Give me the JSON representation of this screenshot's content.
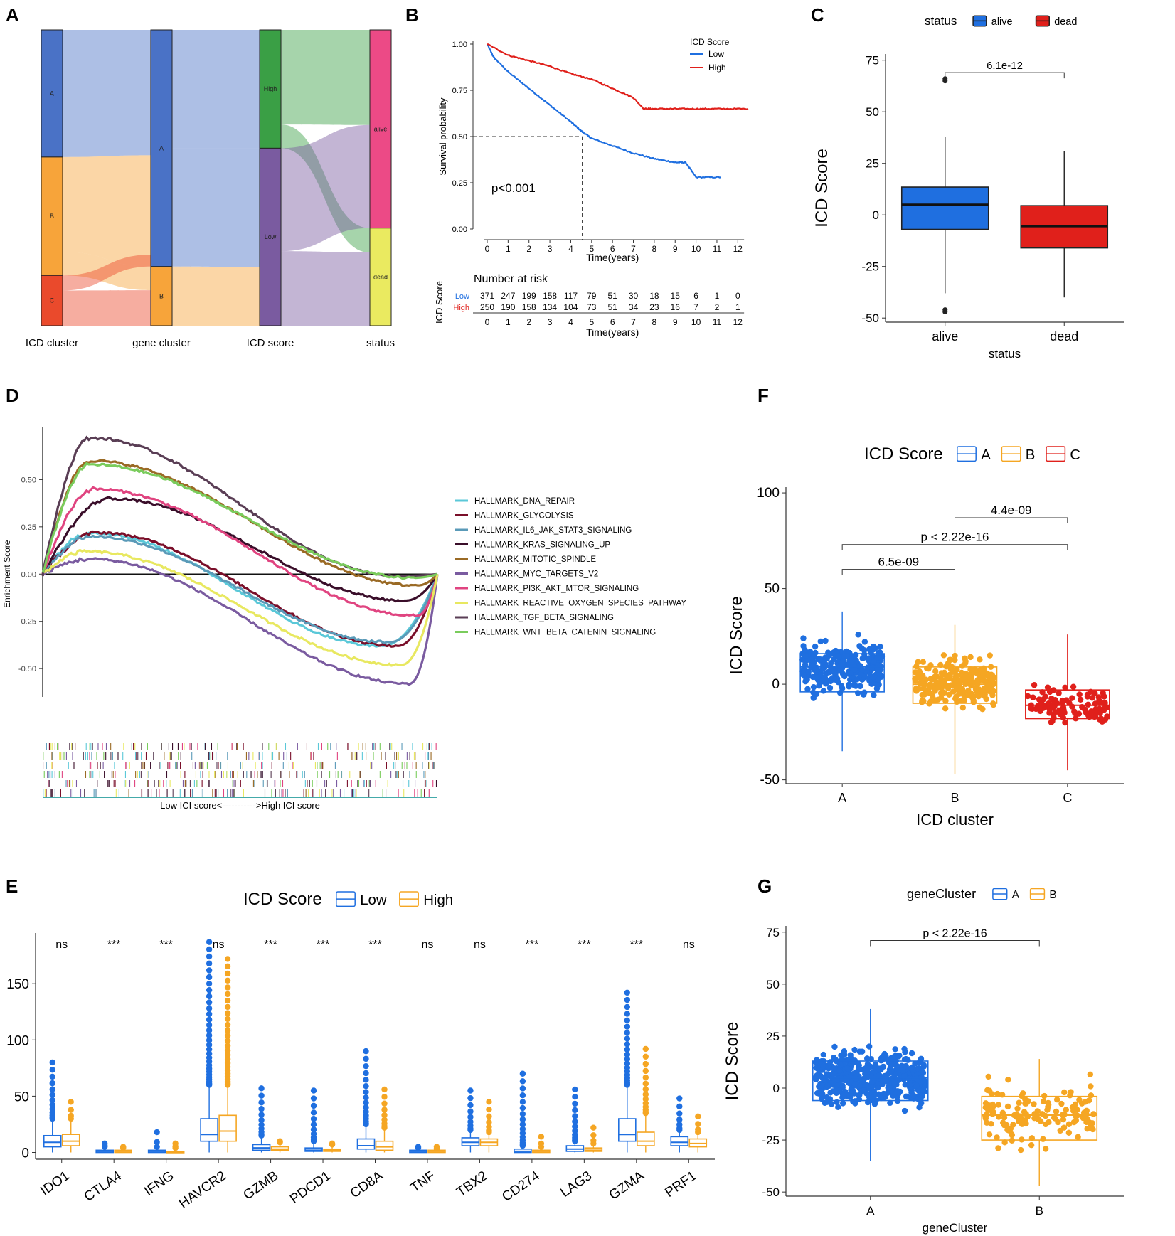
{
  "panels": {
    "A": "A",
    "B": "B",
    "C": "C",
    "D": "D",
    "E": "E",
    "F": "F",
    "G": "G"
  },
  "colors": {
    "blue": "#1f6fe0",
    "orange": "#f5a623",
    "red": "#e0201b",
    "sankeyBlue": "#4a72c6",
    "sankeyOrange": "#f7a43a",
    "sankeyRed": "#ea4a2c",
    "green": "#3a9f45",
    "purple": "#7a5ba0",
    "pink": "#ec4a86",
    "yellow": "#eaea60"
  },
  "chart_data": [
    {
      "id": "A",
      "type": "sankey",
      "axes": [
        "ICD cluster",
        "gene cluster",
        "ICD score",
        "status"
      ],
      "nodes": [
        {
          "axis": 0,
          "label": "A",
          "value": 0.43
        },
        {
          "axis": 0,
          "label": "B",
          "value": 0.4
        },
        {
          "axis": 0,
          "label": "C",
          "value": 0.17
        },
        {
          "axis": 1,
          "label": "A",
          "value": 0.8
        },
        {
          "axis": 1,
          "label": "B",
          "value": 0.2
        },
        {
          "axis": 2,
          "label": "High",
          "value": 0.4
        },
        {
          "axis": 2,
          "label": "Low",
          "value": 0.6
        },
        {
          "axis": 3,
          "label": "alive",
          "value": 0.67
        },
        {
          "axis": 3,
          "label": "dead",
          "value": 0.33
        }
      ]
    },
    {
      "id": "B",
      "type": "line",
      "subtype": "kaplan-meier",
      "legend_title": "ICD Score",
      "series": [
        {
          "name": "Low",
          "x": [
            0,
            0.3,
            1,
            2,
            3,
            4,
            4.5,
            5,
            6,
            7,
            8,
            9,
            9.5,
            10,
            11.2
          ],
          "y": [
            1.0,
            0.93,
            0.85,
            0.76,
            0.67,
            0.58,
            0.53,
            0.49,
            0.45,
            0.41,
            0.38,
            0.36,
            0.36,
            0.28,
            0.28
          ]
        },
        {
          "name": "High",
          "x": [
            0,
            1,
            2,
            3,
            4,
            5,
            6,
            7,
            7.5,
            8,
            9,
            10,
            11,
            12.5
          ],
          "y": [
            1.0,
            0.94,
            0.91,
            0.88,
            0.84,
            0.81,
            0.76,
            0.71,
            0.65,
            0.65,
            0.65,
            0.65,
            0.65,
            0.65
          ]
        }
      ],
      "xlabel": "Time(years)",
      "ylabel": "Survival probability",
      "xticks": [
        "0",
        "1",
        "2",
        "3",
        "4",
        "5",
        "6",
        "7",
        "8",
        "9",
        "10",
        "11",
        "12"
      ],
      "yticks": [
        "0.00",
        "0.25",
        "0.50",
        "0.75",
        "1.00"
      ],
      "annotation": "p<0.001",
      "risk_table": {
        "title": "Number at risk",
        "ylabel": "ICD Score",
        "rows": [
          {
            "name": "Low",
            "values": [
              "371",
              "247",
              "199",
              "158",
              "117",
              "79",
              "51",
              "30",
              "18",
              "15",
              "6",
              "1",
              "0"
            ]
          },
          {
            "name": "High",
            "values": [
              "250",
              "190",
              "158",
              "134",
              "104",
              "73",
              "51",
              "34",
              "23",
              "16",
              "7",
              "2",
              "1"
            ]
          }
        ],
        "xlabel": "Time(years)"
      }
    },
    {
      "id": "C",
      "type": "box",
      "title": "status",
      "legend": [
        "alive",
        "dead"
      ],
      "categories": [
        "alive",
        "dead"
      ],
      "stats": [
        {
          "min": -38,
          "q1": -7,
          "median": 5,
          "q3": 13.5,
          "max": 38,
          "outliers": [
            66,
            65,
            -46,
            -47
          ]
        },
        {
          "min": -40,
          "q1": -16,
          "median": -5.5,
          "q3": 4.5,
          "max": 31,
          "outliers": []
        }
      ],
      "xlabel": "status",
      "ylabel": "ICD Score",
      "ylim": [
        -52,
        78
      ],
      "yticks": [
        "75",
        "50",
        "25",
        "0",
        "-25",
        "-50"
      ],
      "comparisons": [
        {
          "label": "6.1e-12"
        }
      ]
    },
    {
      "id": "D",
      "type": "line",
      "subtype": "gsea",
      "series_names": [
        "HALLMARK_DNA_REPAIR",
        "HALLMARK_GLYCOLYSIS",
        "HALLMARK_IL6_JAK_STAT3_SIGNALING",
        "HALLMARK_KRAS_SIGNALING_UP",
        "HALLMARK_MITOTIC_SPINDLE",
        "HALLMARK_MYC_TARGETS_V2",
        "HALLMARK_PI3K_AKT_MTOR_SIGNALING",
        "HALLMARK_REACTIVE_OXYGEN_SPECIES_PATHWAY",
        "HALLMARK_TGF_BETA_SIGNALING",
        "HALLMARK_WNT_BETA_CATENIN_SIGNALING"
      ],
      "series_colors": [
        "#5bc8d8",
        "#7a0f2a",
        "#5a9ab8",
        "#3a0e2a",
        "#9a6a25",
        "#7a5ba0",
        "#e04480",
        "#e8e860",
        "#5a3e55",
        "#7acc5c"
      ],
      "peaks": [
        0.22,
        0.22,
        0.2,
        0.4,
        0.6,
        0.08,
        0.45,
        0.12,
        0.72,
        0.58
      ],
      "troughs": [
        -0.38,
        -0.38,
        -0.36,
        -0.14,
        -0.06,
        -0.58,
        -0.22,
        -0.48,
        -0.01,
        -0.02
      ],
      "ylabel": "Enrichment Score",
      "yticks": [
        "0.50",
        "0.25",
        "0.00",
        "-0.25",
        "-0.50"
      ],
      "footer": "Low ICI score<----------->High ICI score"
    },
    {
      "id": "E",
      "type": "box",
      "legend_title": "ICD Score",
      "legend": [
        "Low",
        "High"
      ],
      "categories": [
        "IDO1",
        "CTLA4",
        "IFNG",
        "HAVCR2",
        "GZMB",
        "PDCD1",
        "CD8A",
        "TNF",
        "TBX2",
        "CD274",
        "LAG3",
        "GZMA",
        "PRF1"
      ],
      "significance": [
        "ns",
        "***",
        "***",
        "ns",
        "***",
        "***",
        "***",
        "ns",
        "ns",
        "***",
        "***",
        "***",
        "ns"
      ],
      "series": [
        {
          "name": "Low",
          "q1": [
            5,
            0,
            0,
            10,
            2,
            1,
            3,
            0,
            6,
            0,
            1,
            10,
            6
          ],
          "median": [
            9,
            1,
            1,
            16,
            4,
            2,
            6,
            1,
            9,
            1,
            3,
            16,
            9
          ],
          "q3": [
            15,
            2,
            2,
            30,
            7,
            4,
            12,
            2,
            13,
            3,
            6,
            30,
            14
          ],
          "max": [
            30,
            5,
            5,
            60,
            15,
            10,
            25,
            4,
            20,
            6,
            10,
            60,
            20
          ],
          "outlier_max": [
            80,
            8,
            18,
            187,
            57,
            55,
            90,
            5,
            55,
            70,
            56,
            142,
            48
          ]
        },
        {
          "name": "High",
          "q1": [
            6,
            0,
            0,
            10,
            2,
            1,
            2,
            0,
            6,
            0,
            1,
            6,
            5
          ],
          "median": [
            10,
            1,
            0,
            19,
            3,
            2,
            5,
            1,
            9,
            1,
            2,
            10,
            8
          ],
          "q3": [
            16,
            2,
            1,
            33,
            5,
            3,
            10,
            2,
            12,
            2,
            4,
            18,
            12
          ],
          "max": [
            30,
            4,
            4,
            60,
            9,
            7,
            22,
            3,
            18,
            5,
            8,
            35,
            18
          ],
          "outlier_max": [
            45,
            5,
            8,
            172,
            10,
            8,
            56,
            5,
            45,
            14,
            22,
            92,
            32
          ]
        }
      ],
      "yticks": [
        "0",
        "50",
        "100",
        "150"
      ]
    },
    {
      "id": "F",
      "type": "box",
      "legend_title": "ICD Score",
      "legend": [
        "A",
        "B",
        "C"
      ],
      "categories": [
        "A",
        "B",
        "C"
      ],
      "stats": [
        {
          "min": -35,
          "q1": -4,
          "median": 9,
          "q3": 16,
          "max": 38,
          "n": 260
        },
        {
          "min": -47,
          "q1": -10,
          "median": 0,
          "q3": 9,
          "max": 31,
          "n": 230
        },
        {
          "min": -45,
          "q1": -18,
          "median": -11,
          "q3": -3,
          "max": 26,
          "n": 100
        }
      ],
      "xlabel": "ICD cluster",
      "ylabel": "ICD Score",
      "ylim": [
        -52,
        103
      ],
      "yticks": [
        "100",
        "50",
        "0",
        "-50"
      ],
      "comparisons": [
        {
          "label": "4.4e-09"
        },
        {
          "label": "p < 2.22e-16"
        },
        {
          "label": "6.5e-09"
        }
      ]
    },
    {
      "id": "G",
      "type": "box",
      "legend_title": "geneCluster",
      "legend": [
        "A",
        "B"
      ],
      "categories": [
        "A",
        "B"
      ],
      "stats": [
        {
          "min": -35,
          "q1": -6,
          "median": 5,
          "q3": 13,
          "max": 38,
          "n": 480
        },
        {
          "min": -47,
          "q1": -25,
          "median": -13,
          "q3": -4,
          "max": 14,
          "n": 140
        }
      ],
      "xlabel": "geneCluster",
      "ylabel": "ICD Score",
      "ylim": [
        -52,
        78
      ],
      "yticks": [
        "75",
        "50",
        "25",
        "0",
        "-25",
        "-50"
      ],
      "comparisons": [
        {
          "label": "p < 2.22e-16"
        }
      ]
    }
  ]
}
